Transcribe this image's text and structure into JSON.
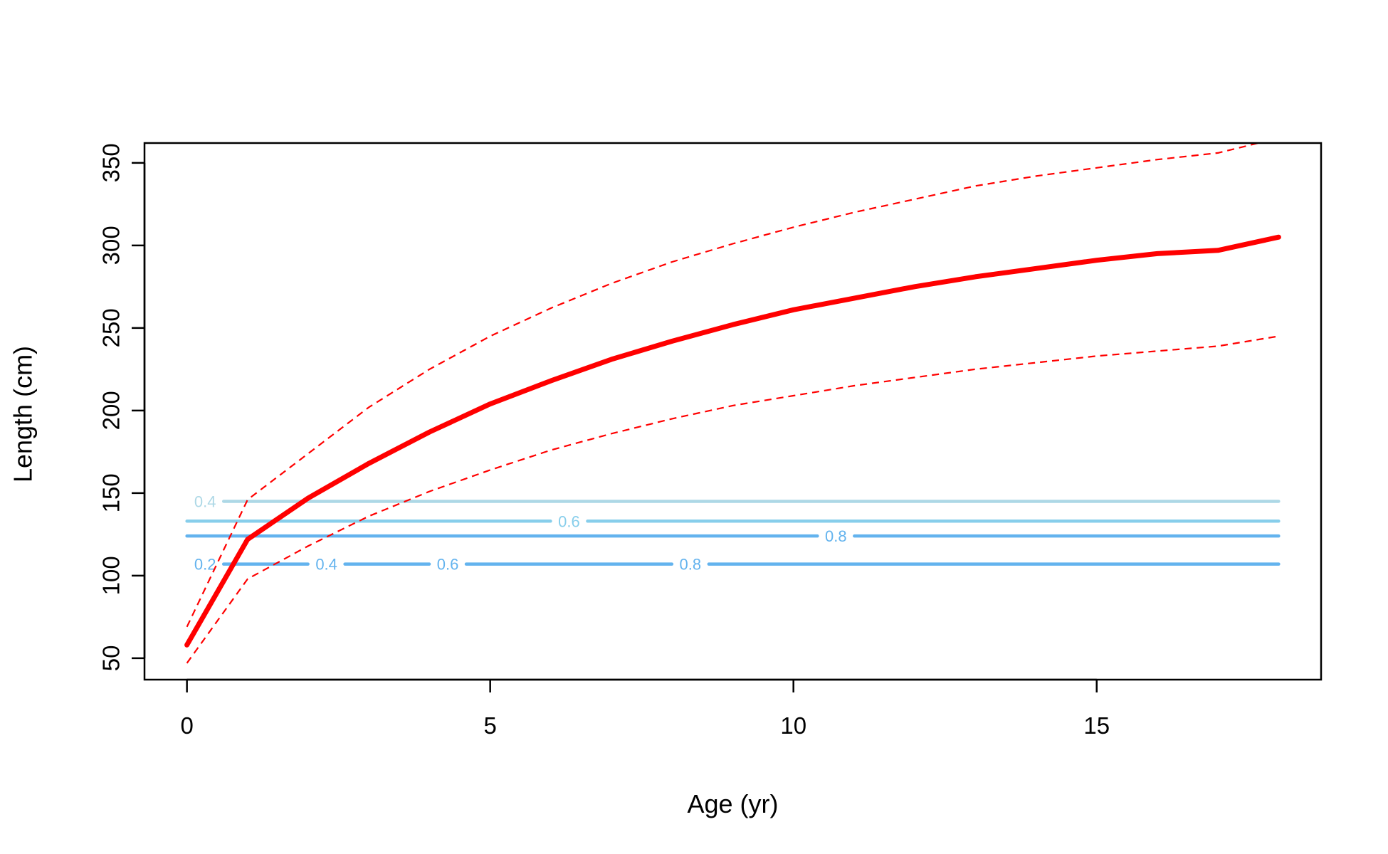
{
  "chart_data": {
    "type": "line",
    "title": "",
    "xlabel": "Age (yr)",
    "ylabel": "Length (cm)",
    "xlim": [
      -0.7,
      18.7
    ],
    "ylim": [
      37,
      362
    ],
    "x_ticks": [
      0,
      5,
      10,
      15
    ],
    "y_ticks": [
      50,
      100,
      150,
      200,
      250,
      300,
      350
    ],
    "grid": false,
    "legend": "none",
    "series": [
      {
        "style": "solid",
        "color": "#ff0000",
        "x": [
          0,
          1,
          2,
          3,
          4,
          5,
          6,
          7,
          8,
          9,
          10,
          11,
          12,
          13,
          14,
          15,
          16,
          17,
          18
        ],
        "y": [
          58,
          122,
          147,
          168,
          187,
          204,
          218,
          231,
          242,
          252,
          261,
          268,
          275,
          281,
          286,
          291,
          295,
          297,
          305
        ]
      },
      {
        "style": "dashed",
        "color": "#ff0000",
        "x": [
          0,
          1,
          2,
          3,
          4,
          5,
          6,
          7,
          8,
          9,
          10,
          11,
          12,
          13,
          14,
          15,
          16,
          17,
          18
        ],
        "y": [
          69,
          146,
          174,
          202,
          225,
          245,
          262,
          277,
          290,
          301,
          311,
          320,
          328,
          336,
          342,
          347,
          352,
          356,
          365
        ]
      },
      {
        "style": "dashed",
        "color": "#ff0000",
        "x": [
          0,
          1,
          2,
          3,
          4,
          5,
          6,
          7,
          8,
          9,
          10,
          11,
          12,
          13,
          14,
          15,
          16,
          17,
          18
        ],
        "y": [
          47,
          98,
          118,
          136,
          151,
          164,
          176,
          186,
          195,
          203,
          209,
          215,
          220,
          225,
          229,
          233,
          236,
          239,
          245
        ]
      }
    ],
    "contour_lines": [
      {
        "y": 145,
        "color": "#add8e6",
        "label": "0.4",
        "label_x": [
          0.3
        ]
      },
      {
        "y": 133,
        "color": "#87ceeb",
        "label": "0.6",
        "label_x": [
          6.3
        ]
      },
      {
        "y": 124,
        "color": "#63b3ee",
        "label": "0.8",
        "label_x": [
          10.7
        ]
      },
      {
        "y": 107,
        "color": "#63b3ee",
        "labels": [
          {
            "text": "0.2",
            "x": 0.3
          },
          {
            "text": "0.4",
            "x": 2.3
          },
          {
            "text": "0.6",
            "x": 4.3
          },
          {
            "text": "0.8",
            "x": 8.3
          }
        ]
      }
    ],
    "contour_x_range": [
      0,
      18
    ]
  }
}
